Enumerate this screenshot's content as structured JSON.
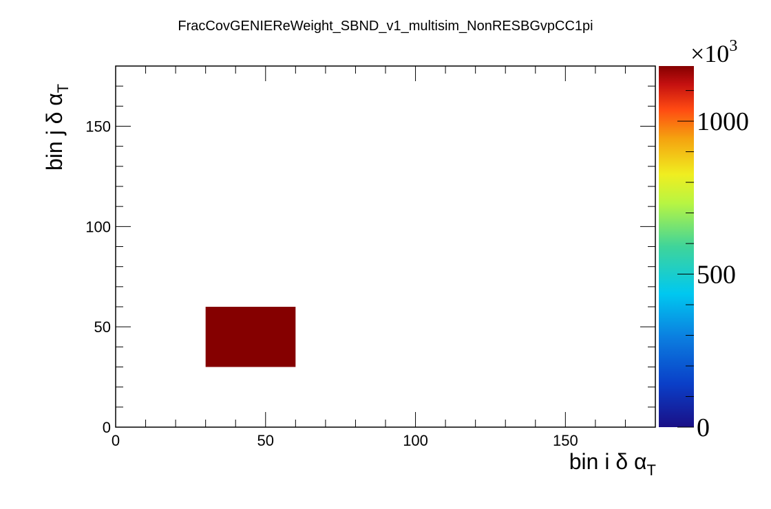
{
  "chart_data": {
    "type": "heatmap",
    "title": "FracCovGENIEReWeight_SBND_v1_multisim_NonRESBGvpCC1pi",
    "xlabel": {
      "text": "bin i δ α",
      "sub": "T"
    },
    "ylabel": {
      "text": "bin j δ α",
      "sub": "T"
    },
    "xlim": [
      0,
      180
    ],
    "ylim": [
      0,
      180
    ],
    "x_major_ticks": [
      0,
      50,
      100,
      150
    ],
    "y_major_ticks": [
      0,
      50,
      100,
      150
    ],
    "x_minor_step": 10,
    "y_minor_step": 10,
    "cells": [
      {
        "x0": 30,
        "x1": 60,
        "y0": 30,
        "y1": 60,
        "value": 1180
      }
    ],
    "colorbar": {
      "min": 0,
      "max": 1180,
      "ticks": [
        0,
        500,
        1000
      ],
      "tick_labels": [
        "0",
        "500",
        "1000"
      ],
      "exponent_label": "×10",
      "exponent": "3",
      "palette": "rainbow (dark blue to dark red)"
    },
    "grid": false,
    "legend": "none"
  }
}
